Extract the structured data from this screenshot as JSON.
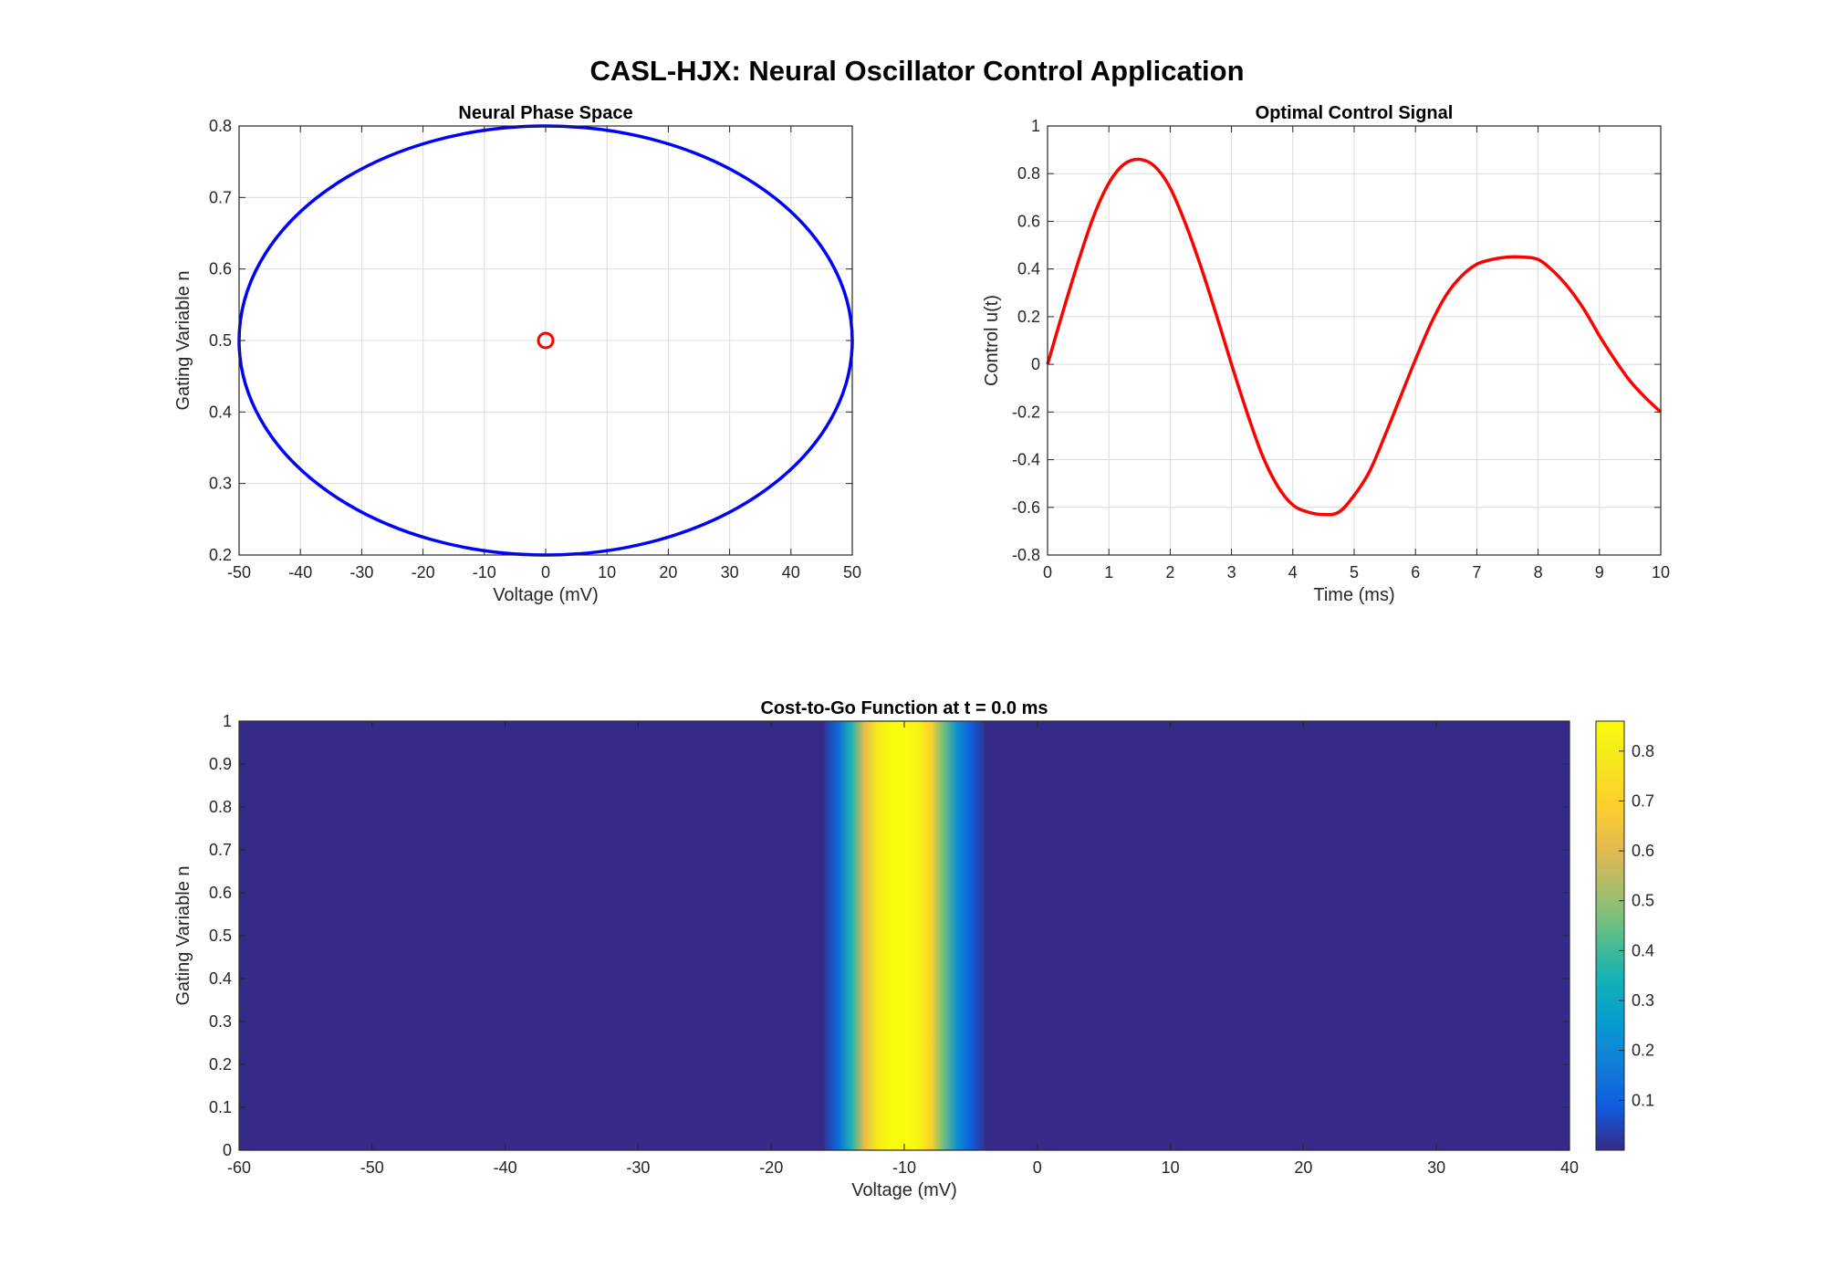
{
  "figure": {
    "title": "CASL-HJX: Neural Oscillator Control Application"
  },
  "chart_data": [
    {
      "id": "phase",
      "type": "line",
      "title": "Neural Phase Space",
      "xlabel": "Voltage (mV)",
      "ylabel": "Gating Variable n",
      "xlim": [
        -50,
        50
      ],
      "ylim": [
        0.2,
        0.8
      ],
      "xticks": [
        -50,
        -40,
        -30,
        -20,
        -10,
        0,
        10,
        20,
        30,
        40,
        50
      ],
      "yticks": [
        0.2,
        0.3,
        0.4,
        0.5,
        0.6,
        0.7,
        0.8
      ],
      "grid": true,
      "series": [
        {
          "kind": "ellipse",
          "center": [
            0,
            0.5
          ],
          "rx": 50,
          "ry": 0.3,
          "color": "#0000ff"
        },
        {
          "kind": "marker",
          "marker": "circle",
          "x": [
            0
          ],
          "y": [
            0.5
          ],
          "color": "#ff0000"
        }
      ]
    },
    {
      "id": "control",
      "type": "line",
      "title": "Optimal Control Signal",
      "xlabel": "Time (ms)",
      "ylabel": "Control u(t)",
      "xlim": [
        0,
        10
      ],
      "ylim": [
        -0.8,
        1
      ],
      "xticks": [
        0,
        1,
        2,
        3,
        4,
        5,
        6,
        7,
        8,
        9,
        10
      ],
      "yticks": [
        -0.8,
        -0.6,
        -0.4,
        -0.2,
        0,
        0.2,
        0.4,
        0.6,
        0.8,
        1
      ],
      "grid": true,
      "series": [
        {
          "kind": "line",
          "color": "#ff0000",
          "x": [
            0,
            0.25,
            0.5,
            0.75,
            1,
            1.25,
            1.5,
            1.75,
            2,
            2.25,
            2.5,
            2.75,
            3,
            3.25,
            3.5,
            3.75,
            4,
            4.25,
            4.5,
            4.75,
            5,
            5.25,
            5.5,
            5.75,
            6,
            6.25,
            6.5,
            6.75,
            7,
            7.25,
            7.5,
            7.75,
            8,
            8.25,
            8.5,
            8.75,
            9,
            9.25,
            9.5,
            9.75,
            10
          ],
          "y": [
            0,
            0.22,
            0.43,
            0.62,
            0.76,
            0.84,
            0.86,
            0.83,
            0.74,
            0.59,
            0.41,
            0.21,
            0,
            -0.2,
            -0.38,
            -0.51,
            -0.59,
            -0.62,
            -0.63,
            -0.62,
            -0.55,
            -0.45,
            -0.3,
            -0.14,
            0.02,
            0.17,
            0.29,
            0.37,
            0.42,
            0.44,
            0.45,
            0.45,
            0.44,
            0.39,
            0.32,
            0.23,
            0.12,
            0.02,
            -0.07,
            -0.14,
            -0.2
          ]
        }
      ]
    },
    {
      "id": "cost",
      "type": "heatmap",
      "title": "Cost-to-Go Function at t = 0.0 ms",
      "xlabel": "Voltage (mV)",
      "ylabel": "Gating Variable n",
      "xlim": [
        -60,
        40
      ],
      "ylim": [
        0,
        1
      ],
      "xticks": [
        -60,
        -50,
        -40,
        -30,
        -20,
        -10,
        0,
        10,
        20,
        30,
        40
      ],
      "yticks": [
        0,
        0.1,
        0.2,
        0.3,
        0.4,
        0.5,
        0.6,
        0.7,
        0.8,
        0.9,
        1
      ],
      "colormap": "parula",
      "colorbar": {
        "ticks": [
          0.1,
          0.2,
          0.3,
          0.4,
          0.5,
          0.6,
          0.7,
          0.8
        ],
        "range": [
          0,
          0.86
        ]
      },
      "profile": {
        "varies_with": "x",
        "x": [
          -16,
          -15,
          -14,
          -13,
          -12,
          -11,
          -10,
          -9,
          -8,
          -7,
          -6,
          -5,
          -4
        ],
        "value": [
          0.02,
          0.12,
          0.35,
          0.62,
          0.8,
          0.86,
          0.86,
          0.84,
          0.7,
          0.45,
          0.22,
          0.09,
          0.02
        ],
        "background": 0
      }
    }
  ]
}
